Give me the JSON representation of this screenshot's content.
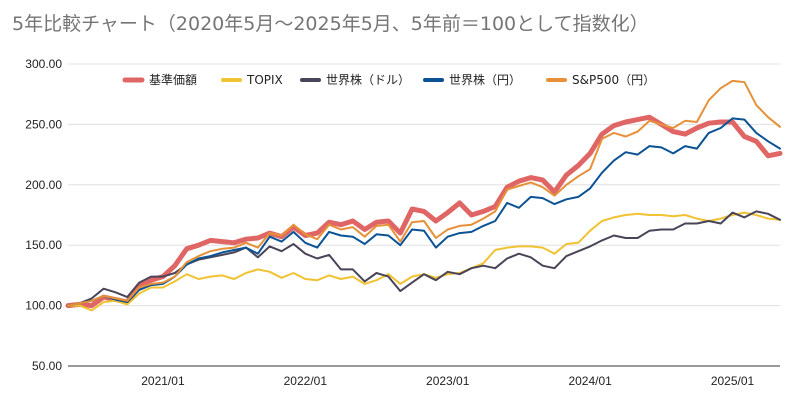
{
  "chart_data": {
    "type": "line",
    "title": "5年比較チャート（2020年5月〜2025年5月、5年前＝100として指数化）",
    "xlabel": "",
    "ylabel": "",
    "ylim": [
      50,
      300
    ],
    "yticks": [
      "50.00",
      "100.00",
      "150.00",
      "200.00",
      "250.00",
      "300.00"
    ],
    "xticks": [
      "2021/01",
      "2022/01",
      "2023/01",
      "2024/01",
      "2025/01"
    ],
    "grid": true,
    "legend_position": "top",
    "x": [
      "2020/05",
      "2020/06",
      "2020/07",
      "2020/08",
      "2020/09",
      "2020/10",
      "2020/11",
      "2020/12",
      "2021/01",
      "2021/02",
      "2021/03",
      "2021/04",
      "2021/05",
      "2021/06",
      "2021/07",
      "2021/08",
      "2021/09",
      "2021/10",
      "2021/11",
      "2021/12",
      "2022/01",
      "2022/02",
      "2022/03",
      "2022/04",
      "2022/05",
      "2022/06",
      "2022/07",
      "2022/08",
      "2022/09",
      "2022/10",
      "2022/11",
      "2022/12",
      "2023/01",
      "2023/02",
      "2023/03",
      "2023/04",
      "2023/05",
      "2023/06",
      "2023/07",
      "2023/08",
      "2023/09",
      "2023/10",
      "2023/11",
      "2023/12",
      "2024/01",
      "2024/02",
      "2024/03",
      "2024/04",
      "2024/05",
      "2024/06",
      "2024/07",
      "2024/08",
      "2024/09",
      "2024/10",
      "2024/11",
      "2024/12",
      "2025/01",
      "2025/02",
      "2025/03",
      "2025/04",
      "2025/05"
    ],
    "series": [
      {
        "name": "基準価額",
        "color": "#e06666",
        "width": 5,
        "values": [
          100,
          101,
          100,
          107,
          105,
          103,
          116,
          121,
          124,
          133,
          147,
          150,
          154,
          153,
          152,
          155,
          156,
          160,
          157,
          165,
          158,
          160,
          169,
          167,
          170,
          163,
          169,
          170,
          160,
          180,
          178,
          170,
          177,
          185,
          175,
          178,
          182,
          198,
          203,
          206,
          204,
          194,
          208,
          216,
          226,
          242,
          249,
          252,
          254,
          256,
          250,
          244,
          242,
          247,
          251,
          252,
          252,
          240,
          236,
          224,
          226
        ]
      },
      {
        "name": "TOPIX",
        "color": "#f1c232",
        "width": 2,
        "values": [
          100,
          100,
          96,
          103,
          104,
          101,
          110,
          115,
          115,
          120,
          126,
          122,
          124,
          125,
          122,
          127,
          130,
          128,
          123,
          127,
          122,
          121,
          125,
          122,
          124,
          118,
          121,
          126,
          118,
          124,
          126,
          123,
          126,
          127,
          131,
          135,
          146,
          148,
          149,
          149,
          148,
          143,
          151,
          152,
          162,
          170,
          173,
          175,
          176,
          175,
          175,
          174,
          175,
          172,
          170,
          172,
          175,
          177,
          175,
          172,
          171
        ]
      },
      {
        "name": "世界株（ドル）",
        "color": "#4a4458",
        "width": 2,
        "values": [
          100,
          102,
          106,
          114,
          111,
          107,
          119,
          124,
          124,
          127,
          134,
          138,
          140,
          142,
          144,
          148,
          140,
          149,
          145,
          151,
          143,
          139,
          142,
          130,
          130,
          120,
          127,
          124,
          112,
          119,
          126,
          121,
          128,
          126,
          131,
          133,
          131,
          139,
          143,
          140,
          133,
          131,
          141,
          145,
          149,
          154,
          158,
          156,
          156,
          162,
          163,
          163,
          168,
          168,
          170,
          168,
          177,
          173,
          178,
          176,
          171
        ]
      },
      {
        "name": "世界株（円）",
        "color": "#0b5394",
        "width": 2,
        "values": [
          100,
          102,
          104,
          108,
          105,
          103,
          113,
          117,
          118,
          124,
          134,
          139,
          141,
          144,
          146,
          148,
          143,
          157,
          153,
          161,
          152,
          148,
          161,
          158,
          157,
          151,
          159,
          158,
          150,
          163,
          162,
          148,
          157,
          160,
          161,
          166,
          170,
          185,
          181,
          190,
          189,
          184,
          188,
          190,
          197,
          210,
          220,
          227,
          225,
          232,
          231,
          226,
          232,
          230,
          243,
          247,
          255,
          254,
          243,
          236,
          230
        ]
      },
      {
        "name": "S&P500（円）",
        "color": "#e69138",
        "width": 2,
        "values": [
          100,
          102,
          104,
          108,
          106,
          104,
          115,
          118,
          119,
          124,
          136,
          141,
          145,
          147,
          148,
          152,
          148,
          160,
          158,
          167,
          159,
          155,
          167,
          163,
          165,
          157,
          166,
          167,
          153,
          169,
          170,
          156,
          163,
          166,
          167,
          172,
          178,
          196,
          199,
          202,
          198,
          191,
          200,
          207,
          213,
          238,
          243,
          240,
          244,
          253,
          250,
          247,
          253,
          252,
          270,
          280,
          286,
          285,
          266,
          256,
          248
        ]
      }
    ]
  }
}
